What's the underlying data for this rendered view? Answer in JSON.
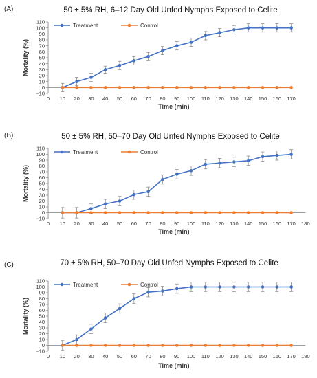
{
  "colors": {
    "treatment": "#4472C4",
    "control": "#ED7D31",
    "axis": "#7f7f7f",
    "errorbar": "#7f7f7f"
  },
  "chart_data": [
    {
      "type": "line",
      "panel_label": "(A)",
      "title": "50 ± 5% RH, 6–12 Day Old Unfed Nymphs Exposed to Celite",
      "xlabel": "Time (min)",
      "ylabel": "Mortality (%)",
      "xlim": [
        0,
        170
      ],
      "ylim": [
        -10,
        110
      ],
      "x_ticks": [
        0,
        10,
        20,
        30,
        40,
        50,
        60,
        70,
        80,
        90,
        100,
        110,
        120,
        130,
        140,
        150,
        160,
        170
      ],
      "y_ticks": [
        -10,
        0,
        10,
        20,
        30,
        40,
        50,
        60,
        70,
        80,
        90,
        100,
        110
      ],
      "grid": false,
      "legend": "top-left",
      "x": [
        10,
        20,
        30,
        40,
        50,
        60,
        70,
        80,
        90,
        100,
        110,
        120,
        130,
        140,
        150,
        160,
        170
      ],
      "series": [
        {
          "name": "Treatment",
          "values": [
            0,
            10,
            17,
            30,
            37,
            45,
            52,
            62,
            70,
            76,
            87,
            92,
            97,
            100,
            100,
            100,
            100
          ],
          "error": [
            7,
            7,
            7,
            6,
            7,
            7,
            7,
            7,
            7,
            7,
            7,
            7,
            7,
            7,
            7,
            7,
            7
          ]
        },
        {
          "name": "Control",
          "values": [
            0,
            0,
            0,
            0,
            0,
            0,
            0,
            0,
            0,
            0,
            0,
            0,
            0,
            0,
            0,
            0,
            0
          ],
          "error": []
        }
      ]
    },
    {
      "type": "line",
      "panel_label": "(B)",
      "title": "50 ± 5% RH, 50–70 Day Old Unfed Nymphs Exposed to Celite",
      "xlabel": "Time (min)",
      "ylabel": "Mortality (%)",
      "xlim": [
        0,
        180
      ],
      "ylim": [
        -10,
        110
      ],
      "x_ticks": [
        0,
        10,
        20,
        30,
        40,
        50,
        60,
        70,
        80,
        90,
        100,
        110,
        120,
        130,
        140,
        150,
        160,
        170,
        180
      ],
      "y_ticks": [
        -10,
        0,
        10,
        20,
        30,
        40,
        50,
        60,
        70,
        80,
        90,
        100,
        110
      ],
      "grid": false,
      "legend": "top-left",
      "x": [
        10,
        20,
        30,
        40,
        50,
        60,
        70,
        80,
        90,
        100,
        110,
        120,
        130,
        140,
        150,
        160,
        170
      ],
      "series": [
        {
          "name": "Treatment",
          "values": [
            0,
            0,
            7,
            15,
            20,
            31,
            36,
            57,
            66,
            72,
            83,
            85,
            87,
            89,
            96,
            98,
            100
          ],
          "error": [
            9,
            9,
            8,
            8,
            8,
            8,
            8,
            8,
            8,
            8,
            8,
            8,
            8,
            8,
            8,
            8,
            8
          ]
        },
        {
          "name": "Control",
          "values": [
            0,
            0,
            0,
            0,
            0,
            0,
            0,
            0,
            0,
            0,
            0,
            0,
            0,
            0,
            0,
            0,
            0
          ],
          "error": []
        }
      ]
    },
    {
      "type": "line",
      "panel_label": "(C)",
      "title": "70 ± 5% RH, 50–70 Day Old Unfed Nymphs Exposed to Celite",
      "xlabel": "Time (min)",
      "ylabel": "Mortality (%)",
      "xlim": [
        0,
        180
      ],
      "ylim": [
        -10,
        110
      ],
      "x_ticks": [
        0,
        10,
        20,
        30,
        40,
        50,
        60,
        70,
        80,
        90,
        100,
        110,
        120,
        130,
        140,
        150,
        160,
        170,
        180
      ],
      "y_ticks": [
        -10,
        0,
        10,
        20,
        30,
        40,
        50,
        60,
        70,
        80,
        90,
        100,
        110
      ],
      "grid": false,
      "legend": "top-left",
      "x": [
        10,
        20,
        30,
        40,
        50,
        60,
        70,
        80,
        90,
        100,
        110,
        120,
        130,
        140,
        150,
        160,
        170
      ],
      "series": [
        {
          "name": "Treatment",
          "values": [
            0,
            10,
            28,
            47,
            63,
            80,
            91,
            93,
            97,
            100,
            100,
            100,
            100,
            100,
            100,
            100,
            100
          ],
          "error": [
            8,
            8,
            8,
            8,
            8,
            8,
            8,
            8,
            8,
            8,
            8,
            8,
            8,
            8,
            8,
            8,
            8
          ]
        },
        {
          "name": "Control",
          "values": [
            0,
            0,
            0,
            0,
            0,
            0,
            0,
            0,
            0,
            0,
            0,
            0,
            0,
            0,
            0,
            0,
            0
          ],
          "error": []
        }
      ]
    }
  ]
}
